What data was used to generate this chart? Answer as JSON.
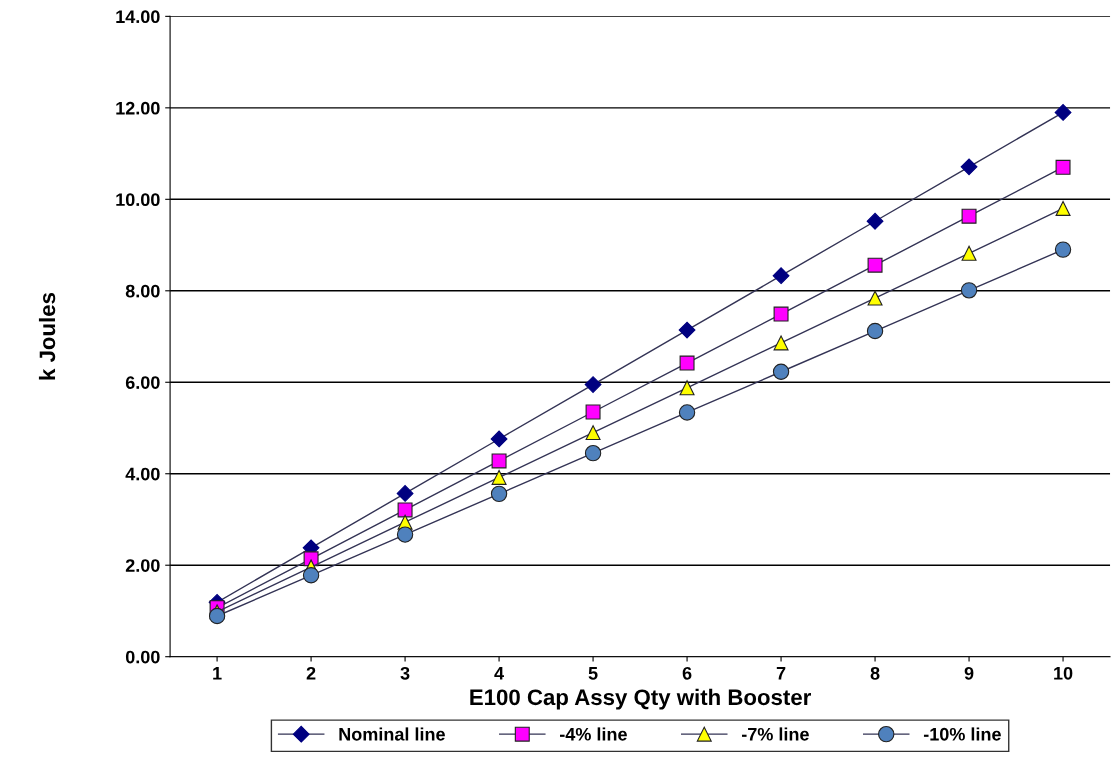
{
  "chart_data": {
    "type": "line",
    "xlabel": "E100 Cap Assy Qty with Booster",
    "ylabel": "k Joules",
    "categories": [
      "1",
      "2",
      "3",
      "4",
      "5",
      "6",
      "7",
      "8",
      "9",
      "10"
    ],
    "ylim": [
      0,
      14
    ],
    "yticks": [
      {
        "value": 0,
        "label": "0.00"
      },
      {
        "value": 2,
        "label": "2.00"
      },
      {
        "value": 4,
        "label": "4.00"
      },
      {
        "value": 6,
        "label": "6.00"
      },
      {
        "value": 8,
        "label": "8.00"
      },
      {
        "value": 10,
        "label": "10.00"
      },
      {
        "value": 12,
        "label": "12.00"
      },
      {
        "value": 14,
        "label": "14.00"
      }
    ],
    "grid": "y",
    "legend": "bottom",
    "series": [
      {
        "name": "Nominal line",
        "color": "#000080",
        "marker": "diamond",
        "values": [
          1.19,
          2.38,
          3.57,
          4.76,
          5.95,
          7.14,
          8.33,
          9.52,
          10.71,
          11.9
        ]
      },
      {
        "name": "-4% line",
        "color": "#ff00ff",
        "marker": "square",
        "values": [
          1.07,
          2.14,
          3.21,
          4.28,
          5.35,
          6.42,
          7.49,
          8.56,
          9.63,
          10.7
        ]
      },
      {
        "name": "-7% line",
        "color": "#ffff00",
        "marker": "triangle",
        "values": [
          0.98,
          1.96,
          2.94,
          3.92,
          4.9,
          5.88,
          6.86,
          7.84,
          8.82,
          9.8
        ]
      },
      {
        "name": "-10% line",
        "color": "#4f81bd",
        "marker": "circle",
        "values": [
          0.89,
          1.78,
          2.67,
          3.56,
          4.45,
          5.34,
          6.23,
          7.12,
          8.01,
          8.9
        ]
      }
    ]
  }
}
